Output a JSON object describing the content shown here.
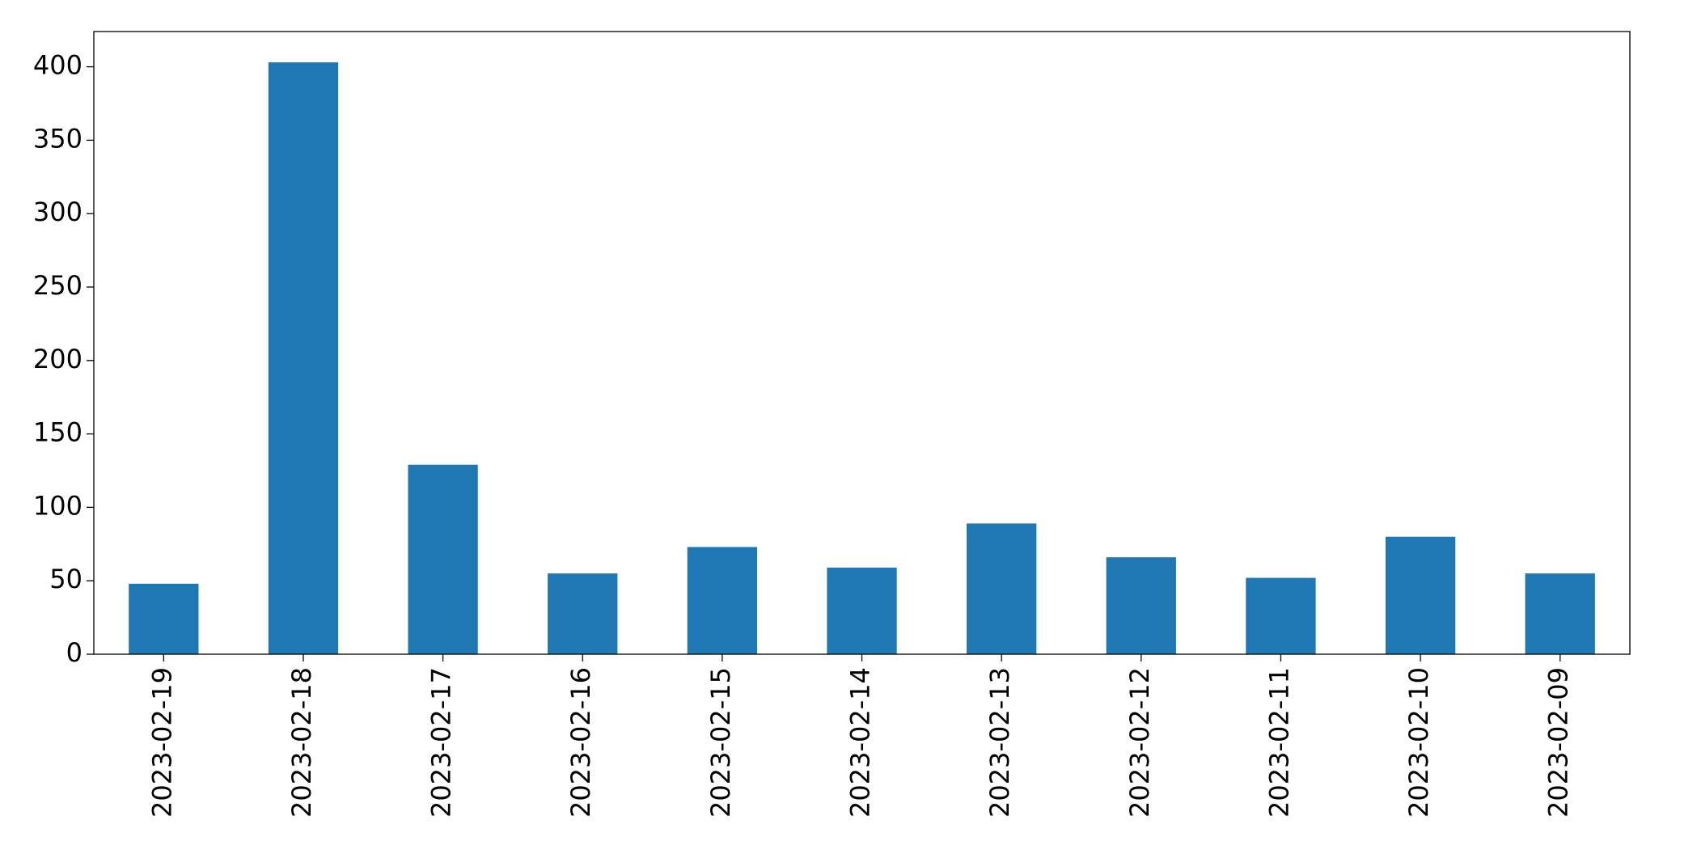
{
  "chart_data": {
    "type": "bar",
    "categories": [
      "2023-02-19",
      "2023-02-18",
      "2023-02-17",
      "2023-02-16",
      "2023-02-15",
      "2023-02-14",
      "2023-02-13",
      "2023-02-12",
      "2023-02-11",
      "2023-02-10",
      "2023-02-09"
    ],
    "values": [
      48,
      403,
      129,
      55,
      73,
      59,
      89,
      66,
      52,
      80,
      55
    ],
    "color": "#1f77b4",
    "ylim": [
      0,
      424
    ],
    "yticks": [
      0,
      50,
      100,
      150,
      200,
      250,
      300,
      350,
      400
    ],
    "grid": false
  }
}
